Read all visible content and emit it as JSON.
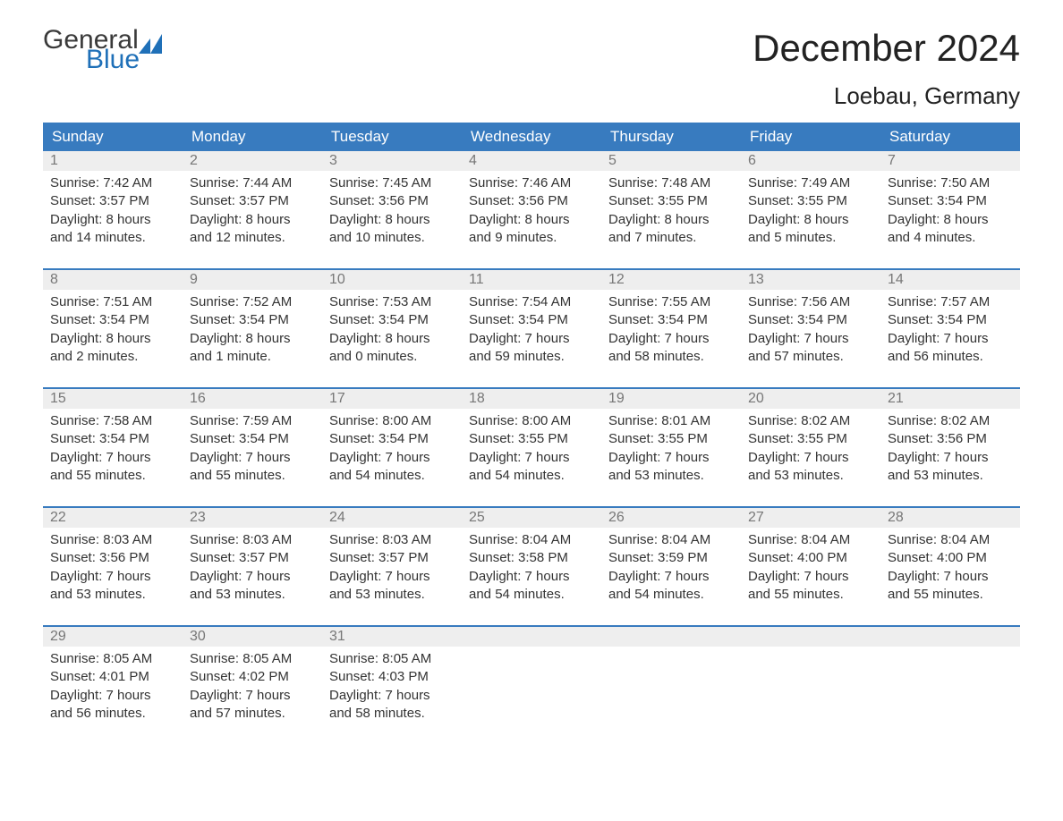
{
  "logo": {
    "text1": "General",
    "text2": "Blue"
  },
  "title": "December 2024",
  "location": "Loebau, Germany",
  "colors": {
    "header_bg": "#387bbf",
    "header_text": "#ffffff",
    "daynum_bg": "#eeeeee",
    "daynum_text": "#777777",
    "body_text": "#333333",
    "week_border": "#387bbf",
    "logo_accent": "#1f70b8",
    "page_bg": "#ffffff"
  },
  "day_headers": [
    "Sunday",
    "Monday",
    "Tuesday",
    "Wednesday",
    "Thursday",
    "Friday",
    "Saturday"
  ],
  "weeks": [
    [
      {
        "num": "1",
        "sunrise": "Sunrise: 7:42 AM",
        "sunset": "Sunset: 3:57 PM",
        "daylight": "Daylight: 8 hours\nand 14 minutes."
      },
      {
        "num": "2",
        "sunrise": "Sunrise: 7:44 AM",
        "sunset": "Sunset: 3:57 PM",
        "daylight": "Daylight: 8 hours\nand 12 minutes."
      },
      {
        "num": "3",
        "sunrise": "Sunrise: 7:45 AM",
        "sunset": "Sunset: 3:56 PM",
        "daylight": "Daylight: 8 hours\nand 10 minutes."
      },
      {
        "num": "4",
        "sunrise": "Sunrise: 7:46 AM",
        "sunset": "Sunset: 3:56 PM",
        "daylight": "Daylight: 8 hours\nand 9 minutes."
      },
      {
        "num": "5",
        "sunrise": "Sunrise: 7:48 AM",
        "sunset": "Sunset: 3:55 PM",
        "daylight": "Daylight: 8 hours\nand 7 minutes."
      },
      {
        "num": "6",
        "sunrise": "Sunrise: 7:49 AM",
        "sunset": "Sunset: 3:55 PM",
        "daylight": "Daylight: 8 hours\nand 5 minutes."
      },
      {
        "num": "7",
        "sunrise": "Sunrise: 7:50 AM",
        "sunset": "Sunset: 3:54 PM",
        "daylight": "Daylight: 8 hours\nand 4 minutes."
      }
    ],
    [
      {
        "num": "8",
        "sunrise": "Sunrise: 7:51 AM",
        "sunset": "Sunset: 3:54 PM",
        "daylight": "Daylight: 8 hours\nand 2 minutes."
      },
      {
        "num": "9",
        "sunrise": "Sunrise: 7:52 AM",
        "sunset": "Sunset: 3:54 PM",
        "daylight": "Daylight: 8 hours\nand 1 minute."
      },
      {
        "num": "10",
        "sunrise": "Sunrise: 7:53 AM",
        "sunset": "Sunset: 3:54 PM",
        "daylight": "Daylight: 8 hours\nand 0 minutes."
      },
      {
        "num": "11",
        "sunrise": "Sunrise: 7:54 AM",
        "sunset": "Sunset: 3:54 PM",
        "daylight": "Daylight: 7 hours\nand 59 minutes."
      },
      {
        "num": "12",
        "sunrise": "Sunrise: 7:55 AM",
        "sunset": "Sunset: 3:54 PM",
        "daylight": "Daylight: 7 hours\nand 58 minutes."
      },
      {
        "num": "13",
        "sunrise": "Sunrise: 7:56 AM",
        "sunset": "Sunset: 3:54 PM",
        "daylight": "Daylight: 7 hours\nand 57 minutes."
      },
      {
        "num": "14",
        "sunrise": "Sunrise: 7:57 AM",
        "sunset": "Sunset: 3:54 PM",
        "daylight": "Daylight: 7 hours\nand 56 minutes."
      }
    ],
    [
      {
        "num": "15",
        "sunrise": "Sunrise: 7:58 AM",
        "sunset": "Sunset: 3:54 PM",
        "daylight": "Daylight: 7 hours\nand 55 minutes."
      },
      {
        "num": "16",
        "sunrise": "Sunrise: 7:59 AM",
        "sunset": "Sunset: 3:54 PM",
        "daylight": "Daylight: 7 hours\nand 55 minutes."
      },
      {
        "num": "17",
        "sunrise": "Sunrise: 8:00 AM",
        "sunset": "Sunset: 3:54 PM",
        "daylight": "Daylight: 7 hours\nand 54 minutes."
      },
      {
        "num": "18",
        "sunrise": "Sunrise: 8:00 AM",
        "sunset": "Sunset: 3:55 PM",
        "daylight": "Daylight: 7 hours\nand 54 minutes."
      },
      {
        "num": "19",
        "sunrise": "Sunrise: 8:01 AM",
        "sunset": "Sunset: 3:55 PM",
        "daylight": "Daylight: 7 hours\nand 53 minutes."
      },
      {
        "num": "20",
        "sunrise": "Sunrise: 8:02 AM",
        "sunset": "Sunset: 3:55 PM",
        "daylight": "Daylight: 7 hours\nand 53 minutes."
      },
      {
        "num": "21",
        "sunrise": "Sunrise: 8:02 AM",
        "sunset": "Sunset: 3:56 PM",
        "daylight": "Daylight: 7 hours\nand 53 minutes."
      }
    ],
    [
      {
        "num": "22",
        "sunrise": "Sunrise: 8:03 AM",
        "sunset": "Sunset: 3:56 PM",
        "daylight": "Daylight: 7 hours\nand 53 minutes."
      },
      {
        "num": "23",
        "sunrise": "Sunrise: 8:03 AM",
        "sunset": "Sunset: 3:57 PM",
        "daylight": "Daylight: 7 hours\nand 53 minutes."
      },
      {
        "num": "24",
        "sunrise": "Sunrise: 8:03 AM",
        "sunset": "Sunset: 3:57 PM",
        "daylight": "Daylight: 7 hours\nand 53 minutes."
      },
      {
        "num": "25",
        "sunrise": "Sunrise: 8:04 AM",
        "sunset": "Sunset: 3:58 PM",
        "daylight": "Daylight: 7 hours\nand 54 minutes."
      },
      {
        "num": "26",
        "sunrise": "Sunrise: 8:04 AM",
        "sunset": "Sunset: 3:59 PM",
        "daylight": "Daylight: 7 hours\nand 54 minutes."
      },
      {
        "num": "27",
        "sunrise": "Sunrise: 8:04 AM",
        "sunset": "Sunset: 4:00 PM",
        "daylight": "Daylight: 7 hours\nand 55 minutes."
      },
      {
        "num": "28",
        "sunrise": "Sunrise: 8:04 AM",
        "sunset": "Sunset: 4:00 PM",
        "daylight": "Daylight: 7 hours\nand 55 minutes."
      }
    ],
    [
      {
        "num": "29",
        "sunrise": "Sunrise: 8:05 AM",
        "sunset": "Sunset: 4:01 PM",
        "daylight": "Daylight: 7 hours\nand 56 minutes."
      },
      {
        "num": "30",
        "sunrise": "Sunrise: 8:05 AM",
        "sunset": "Sunset: 4:02 PM",
        "daylight": "Daylight: 7 hours\nand 57 minutes."
      },
      {
        "num": "31",
        "sunrise": "Sunrise: 8:05 AM",
        "sunset": "Sunset: 4:03 PM",
        "daylight": "Daylight: 7 hours\nand 58 minutes."
      },
      null,
      null,
      null,
      null
    ]
  ]
}
